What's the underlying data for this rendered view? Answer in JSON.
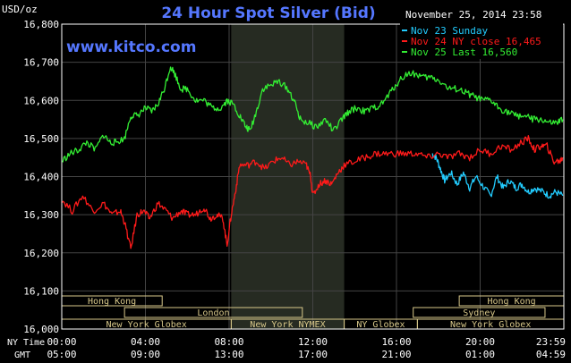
{
  "chart_data": {
    "type": "line",
    "title": "24 Hour Spot Silver (Bid)",
    "unit_label": "USD/oz",
    "timestamp": "November 25, 2014 23:58",
    "watermark": "www.kitco.com",
    "ylim": [
      16.0,
      16.8
    ],
    "y_ticks": [
      "16,000",
      "16,100",
      "16,200",
      "16,300",
      "16,400",
      "16,500",
      "16,600",
      "16,700",
      "16,800"
    ],
    "x_range_hours": [
      0,
      24
    ],
    "x_axis_rows": [
      {
        "label": "NY Time",
        "ticks": [
          "00:00",
          "04:00",
          "08:00",
          "12:00",
          "16:00",
          "20:00",
          "23:59"
        ]
      },
      {
        "label": "GMT",
        "ticks": [
          "05:00",
          "09:00",
          "13:00",
          "17:00",
          "21:00",
          "01:00",
          "04:59"
        ]
      }
    ],
    "shaded_period": {
      "label": "New York NYMEX",
      "start": 8.1,
      "end": 13.5
    },
    "sessions": [
      {
        "label": "Hong Kong",
        "start": 0.0,
        "end": 4.8,
        "row": 0
      },
      {
        "label": "Hong Kong",
        "start": 19.0,
        "end": 24.0,
        "row": 0
      },
      {
        "label": "London",
        "start": 3.0,
        "end": 11.5,
        "row": 1
      },
      {
        "label": "Sydney",
        "start": 16.8,
        "end": 23.1,
        "row": 1
      },
      {
        "label": "New York Globex",
        "start": 0.0,
        "end": 8.1,
        "row": 2
      },
      {
        "label": "New York NYMEX",
        "start": 8.1,
        "end": 13.5,
        "row": 2
      },
      {
        "label": "NY Globex",
        "start": 13.5,
        "end": 17.0,
        "row": 2
      },
      {
        "label": "New York Globex",
        "start": 17.0,
        "end": 24.0,
        "row": 2
      }
    ],
    "series": [
      {
        "name": "Nov 23 Sunday",
        "color": "#22ccff",
        "points": [
          [
            17.7,
            16.46
          ],
          [
            17.9,
            16.45
          ],
          [
            18.1,
            16.42
          ],
          [
            18.3,
            16.39
          ],
          [
            18.6,
            16.41
          ],
          [
            18.9,
            16.38
          ],
          [
            19.2,
            16.41
          ],
          [
            19.5,
            16.37
          ],
          [
            19.8,
            16.4
          ],
          [
            20.2,
            16.37
          ],
          [
            20.5,
            16.35
          ],
          [
            20.8,
            16.4
          ],
          [
            21.1,
            16.37
          ],
          [
            21.4,
            16.39
          ],
          [
            21.7,
            16.37
          ],
          [
            22.0,
            16.38
          ],
          [
            22.3,
            16.36
          ],
          [
            22.6,
            16.37
          ],
          [
            23.0,
            16.36
          ],
          [
            23.3,
            16.35
          ],
          [
            23.6,
            16.36
          ],
          [
            23.95,
            16.35
          ]
        ]
      },
      {
        "name": "Nov 24 NY close 16,465",
        "color": "#ff1a1a",
        "points": [
          [
            0.0,
            16.34
          ],
          [
            0.5,
            16.31
          ],
          [
            1.0,
            16.35
          ],
          [
            1.5,
            16.31
          ],
          [
            2.0,
            16.33
          ],
          [
            2.4,
            16.3
          ],
          [
            2.8,
            16.31
          ],
          [
            3.0,
            16.28
          ],
          [
            3.3,
            16.21
          ],
          [
            3.6,
            16.3
          ],
          [
            3.9,
            16.31
          ],
          [
            4.2,
            16.29
          ],
          [
            4.6,
            16.33
          ],
          [
            5.0,
            16.31
          ],
          [
            5.3,
            16.29
          ],
          [
            5.7,
            16.31
          ],
          [
            6.0,
            16.3
          ],
          [
            6.4,
            16.3
          ],
          [
            6.8,
            16.32
          ],
          [
            7.1,
            16.29
          ],
          [
            7.4,
            16.3
          ],
          [
            7.7,
            16.29
          ],
          [
            7.9,
            16.22
          ],
          [
            8.1,
            16.3
          ],
          [
            8.3,
            16.36
          ],
          [
            8.5,
            16.43
          ],
          [
            8.9,
            16.43
          ],
          [
            9.3,
            16.44
          ],
          [
            9.7,
            16.42
          ],
          [
            10.1,
            16.44
          ],
          [
            10.5,
            16.45
          ],
          [
            10.9,
            16.43
          ],
          [
            11.3,
            16.44
          ],
          [
            11.7,
            16.43
          ],
          [
            11.9,
            16.4
          ],
          [
            12.0,
            16.35
          ],
          [
            12.3,
            16.38
          ],
          [
            12.6,
            16.39
          ],
          [
            12.9,
            16.38
          ],
          [
            13.2,
            16.41
          ],
          [
            13.5,
            16.43
          ],
          [
            14.0,
            16.44
          ],
          [
            14.5,
            16.45
          ],
          [
            15.0,
            16.46
          ],
          [
            15.5,
            16.46
          ],
          [
            16.0,
            16.46
          ],
          [
            16.5,
            16.46
          ],
          [
            17.0,
            16.46
          ],
          [
            17.5,
            16.45
          ],
          [
            18.0,
            16.46
          ],
          [
            18.5,
            16.45
          ],
          [
            19.0,
            16.46
          ],
          [
            19.5,
            16.45
          ],
          [
            20.0,
            16.47
          ],
          [
            20.5,
            16.46
          ],
          [
            21.0,
            16.48
          ],
          [
            21.5,
            16.47
          ],
          [
            22.0,
            16.49
          ],
          [
            22.3,
            16.5
          ],
          [
            22.6,
            16.47
          ],
          [
            22.9,
            16.48
          ],
          [
            23.2,
            16.48
          ],
          [
            23.5,
            16.44
          ],
          [
            23.8,
            16.44
          ],
          [
            23.95,
            16.45
          ]
        ]
      },
      {
        "name": "Nov 25 Last 16,560",
        "color": "#33ee33",
        "points": [
          [
            0.0,
            16.44
          ],
          [
            0.4,
            16.46
          ],
          [
            0.8,
            16.47
          ],
          [
            1.2,
            16.49
          ],
          [
            1.6,
            16.47
          ],
          [
            2.0,
            16.51
          ],
          [
            2.3,
            16.49
          ],
          [
            2.6,
            16.49
          ],
          [
            3.0,
            16.5
          ],
          [
            3.3,
            16.56
          ],
          [
            3.6,
            16.56
          ],
          [
            4.0,
            16.58
          ],
          [
            4.3,
            16.57
          ],
          [
            4.6,
            16.59
          ],
          [
            4.9,
            16.63
          ],
          [
            5.2,
            16.69
          ],
          [
            5.4,
            16.67
          ],
          [
            5.7,
            16.63
          ],
          [
            6.0,
            16.63
          ],
          [
            6.4,
            16.6
          ],
          [
            6.8,
            16.6
          ],
          [
            7.2,
            16.58
          ],
          [
            7.6,
            16.58
          ],
          [
            7.9,
            16.6
          ],
          [
            8.2,
            16.59
          ],
          [
            8.5,
            16.56
          ],
          [
            8.8,
            16.53
          ],
          [
            9.0,
            16.52
          ],
          [
            9.3,
            16.57
          ],
          [
            9.6,
            16.63
          ],
          [
            10.0,
            16.64
          ],
          [
            10.4,
            16.65
          ],
          [
            10.8,
            16.63
          ],
          [
            11.1,
            16.6
          ],
          [
            11.4,
            16.55
          ],
          [
            11.8,
            16.54
          ],
          [
            12.2,
            16.53
          ],
          [
            12.6,
            16.55
          ],
          [
            13.0,
            16.52
          ],
          [
            13.4,
            16.55
          ],
          [
            13.7,
            16.57
          ],
          [
            14.1,
            16.58
          ],
          [
            14.5,
            16.57
          ],
          [
            14.9,
            16.58
          ],
          [
            15.3,
            16.59
          ],
          [
            15.7,
            16.62
          ],
          [
            16.1,
            16.65
          ],
          [
            16.5,
            16.67
          ],
          [
            16.9,
            16.67
          ],
          [
            17.3,
            16.66
          ],
          [
            17.7,
            16.66
          ],
          [
            18.1,
            16.65
          ],
          [
            18.5,
            16.63
          ],
          [
            18.9,
            16.63
          ],
          [
            19.3,
            16.62
          ],
          [
            19.7,
            16.61
          ],
          [
            20.1,
            16.6
          ],
          [
            20.5,
            16.6
          ],
          [
            20.9,
            16.58
          ],
          [
            21.3,
            16.57
          ],
          [
            21.7,
            16.56
          ],
          [
            22.1,
            16.56
          ],
          [
            22.5,
            16.55
          ],
          [
            22.9,
            16.55
          ],
          [
            23.3,
            16.54
          ],
          [
            23.7,
            16.54
          ],
          [
            23.95,
            16.55
          ]
        ]
      }
    ],
    "grid": true,
    "legend_position": "top-right"
  }
}
